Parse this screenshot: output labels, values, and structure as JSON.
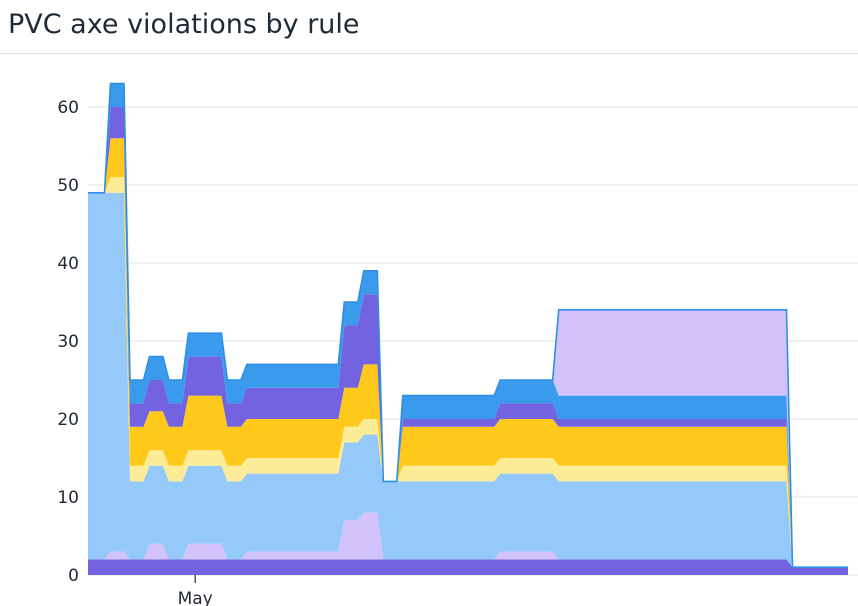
{
  "page": {
    "title": "PVC axe violations by rule"
  },
  "chart_data": {
    "type": "area",
    "stacked": true,
    "title": "PVC axe violations by rule",
    "xlabel": "",
    "ylabel": "",
    "ylim": [
      0,
      60
    ],
    "yticks": [
      0,
      10,
      20,
      30,
      40,
      50,
      60
    ],
    "xtick_labels": [
      "May"
    ],
    "grid": true,
    "legend": "none",
    "interpolation": "step",
    "x": [
      "Apr 20",
      "Apr 25",
      "Apr 28",
      "Apr 29",
      "Apr 30",
      "May 1",
      "May 2",
      "May 3",
      "May 4",
      "May 5",
      "May 6",
      "May 7",
      "May 8",
      "May 9",
      "May 10",
      "May 11",
      "May 12",
      "May 13",
      "May 14",
      "May 15",
      "May 16",
      "May 17",
      "May 18",
      "May 19",
      "May 20",
      "May 21",
      "May 22",
      "May 23",
      "May 24",
      "May 25",
      "May 26",
      "May 27",
      "May 28",
      "May 29",
      "May 30",
      "May 31",
      "Jun 1",
      "Jun 2",
      "Jun 3"
    ],
    "series": [
      {
        "color": "#7463e0",
        "values": [
          2,
          2,
          2,
          2,
          2,
          2,
          2,
          2,
          2,
          2,
          2,
          2,
          2,
          2,
          2,
          2,
          2,
          2,
          2,
          2,
          2,
          2,
          2,
          2,
          2,
          2,
          2,
          2,
          2,
          2,
          2,
          2,
          2,
          2,
          2,
          2,
          1,
          1,
          1
        ]
      },
      {
        "color": "#d4c2fc",
        "values": [
          0,
          1,
          0,
          2,
          0,
          2,
          2,
          0,
          1,
          1,
          1,
          1,
          1,
          5,
          6,
          0,
          0,
          0,
          0,
          0,
          0,
          1,
          1,
          1,
          0,
          0,
          0,
          0,
          0,
          0,
          0,
          0,
          0,
          0,
          0,
          0,
          0,
          0,
          0
        ]
      },
      {
        "color": "#95c9fa",
        "values": [
          47,
          46,
          10,
          10,
          10,
          10,
          10,
          10,
          10,
          10,
          10,
          10,
          10,
          10,
          10,
          10,
          10,
          10,
          10,
          10,
          10,
          10,
          10,
          10,
          10,
          10,
          10,
          10,
          10,
          10,
          10,
          10,
          10,
          10,
          10,
          10,
          0,
          0,
          0
        ]
      },
      {
        "color": "#fcec97",
        "values": [
          0,
          2,
          2,
          2,
          2,
          2,
          2,
          2,
          2,
          2,
          2,
          2,
          2,
          2,
          2,
          0,
          2,
          2,
          2,
          2,
          2,
          2,
          2,
          2,
          2,
          2,
          2,
          2,
          2,
          2,
          2,
          2,
          2,
          2,
          2,
          2,
          0,
          0,
          0
        ]
      },
      {
        "color": "#ffc91c",
        "values": [
          0,
          5,
          5,
          5,
          5,
          7,
          7,
          5,
          5,
          5,
          5,
          5,
          5,
          5,
          7,
          0,
          5,
          5,
          5,
          5,
          5,
          5,
          5,
          5,
          5,
          5,
          5,
          5,
          5,
          5,
          5,
          5,
          5,
          5,
          5,
          5,
          0,
          0,
          0
        ]
      },
      {
        "color": "#7463e0",
        "values": [
          0,
          4,
          3,
          4,
          3,
          5,
          5,
          3,
          4,
          4,
          4,
          4,
          4,
          8,
          9,
          0,
          1,
          1,
          1,
          1,
          1,
          2,
          2,
          2,
          1,
          1,
          1,
          1,
          1,
          1,
          1,
          1,
          1,
          1,
          1,
          1,
          0,
          0,
          0
        ]
      },
      {
        "color": "#3a9aeb",
        "values": [
          0,
          3,
          3,
          3,
          3,
          3,
          3,
          3,
          3,
          3,
          3,
          3,
          3,
          3,
          3,
          0,
          3,
          3,
          3,
          3,
          3,
          3,
          3,
          3,
          3,
          3,
          3,
          3,
          3,
          3,
          3,
          3,
          3,
          3,
          3,
          3,
          0,
          0,
          0
        ]
      },
      {
        "color": "#d4c2fc",
        "values": [
          0,
          0,
          0,
          0,
          0,
          0,
          0,
          0,
          0,
          0,
          0,
          0,
          0,
          0,
          0,
          0,
          0,
          0,
          0,
          0,
          0,
          0,
          0,
          0,
          11,
          11,
          11,
          11,
          11,
          11,
          11,
          11,
          11,
          11,
          11,
          11,
          0,
          0,
          0
        ]
      }
    ]
  }
}
